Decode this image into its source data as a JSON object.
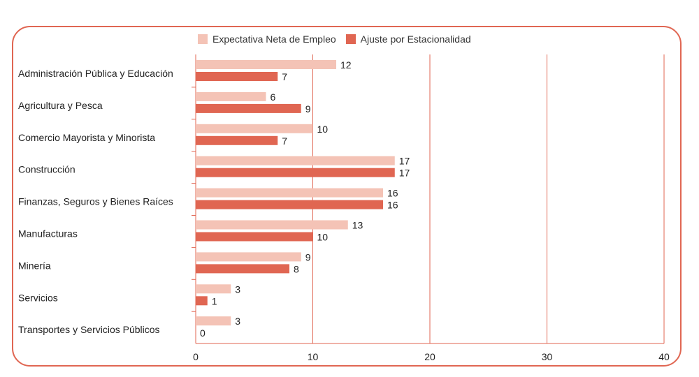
{
  "legend": {
    "series_1": "Expectativa Neta de Empleo",
    "series_2": "Ajuste por Estacionalidad"
  },
  "colors": {
    "frame": "#e06652",
    "series_1": "#f4c3b6",
    "series_2": "#e06652",
    "grid": "#e06652"
  },
  "chart_data": {
    "type": "bar",
    "orientation": "horizontal",
    "categories": [
      "Administración Pública y Educación",
      "Agricultura y Pesca",
      "Comercio Mayorista y Minorista",
      "Construcción",
      "Finanzas, Seguros y Bienes Raíces",
      "Manufacturas",
      "Minería",
      "Servicios",
      "Transportes y Servicios Públicos"
    ],
    "series": [
      {
        "name": "Expectativa Neta de Empleo",
        "values": [
          12,
          6,
          10,
          17,
          16,
          13,
          9,
          3,
          3
        ]
      },
      {
        "name": "Ajuste por Estacionalidad",
        "values": [
          7,
          9,
          7,
          17,
          16,
          10,
          8,
          1,
          0
        ]
      }
    ],
    "xlim": [
      0,
      40
    ],
    "xticks": [
      0,
      10,
      20,
      30,
      40
    ],
    "grid": true,
    "legend_position": "top"
  }
}
